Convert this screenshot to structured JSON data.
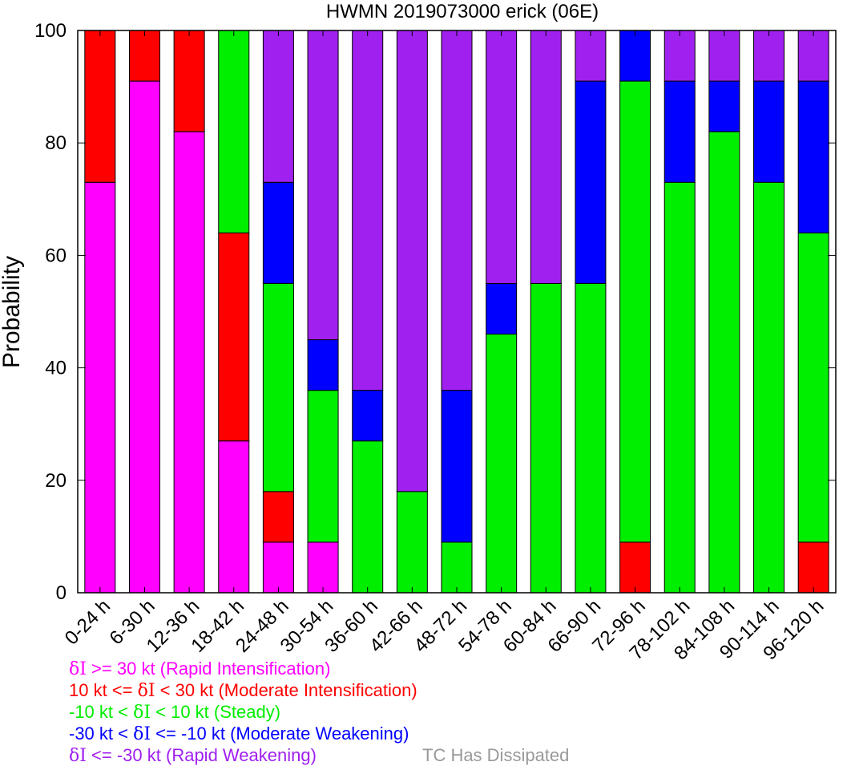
{
  "chart_data": {
    "type": "bar",
    "stacked": true,
    "title": "HWMN 2019073000 erick (06E)",
    "xlabel": "",
    "ylabel": "Probability",
    "ylim": [
      0,
      100
    ],
    "yticks": [
      0,
      20,
      40,
      60,
      80,
      100
    ],
    "categories": [
      "0-24 h",
      "6-30 h",
      "12-36 h",
      "18-42 h",
      "24-48 h",
      "30-54 h",
      "36-60 h",
      "42-66 h",
      "48-72 h",
      "54-78 h",
      "60-84 h",
      "66-90 h",
      "72-96 h",
      "78-102 h",
      "84-108 h",
      "90-114 h",
      "96-120 h"
    ],
    "series": [
      {
        "name": "Rapid Intensification",
        "color": "#ff00ff",
        "values": [
          73,
          91,
          82,
          27,
          9,
          9,
          0,
          0,
          0,
          0,
          0,
          0,
          0,
          0,
          0,
          0,
          0
        ]
      },
      {
        "name": "Moderate Intensification",
        "color": "#ff0000",
        "values": [
          27,
          9,
          18,
          37,
          9,
          0,
          0,
          0,
          0,
          0,
          0,
          0,
          9,
          0,
          0,
          0,
          9
        ]
      },
      {
        "name": "Steady",
        "color": "#00ee00",
        "values": [
          0,
          0,
          0,
          36,
          37,
          27,
          27,
          18,
          9,
          46,
          55,
          55,
          82,
          73,
          82,
          73,
          55
        ]
      },
      {
        "name": "Moderate Weakening",
        "color": "#0000ff",
        "values": [
          0,
          0,
          0,
          0,
          18,
          9,
          9,
          0,
          27,
          9,
          0,
          36,
          9,
          18,
          9,
          18,
          27
        ]
      },
      {
        "name": "Rapid Weakening",
        "color": "#a020f0",
        "values": [
          0,
          0,
          0,
          0,
          27,
          55,
          64,
          82,
          64,
          45,
          45,
          9,
          0,
          9,
          9,
          9,
          9
        ]
      }
    ],
    "grid": false,
    "legend_position": "bottom-left"
  },
  "legend": {
    "items": [
      {
        "symbol": "δI",
        "text": " >= 30 kt (Rapid Intensification)",
        "color": "#ff00ff"
      },
      {
        "pre": "10 kt <= ",
        "symbol": "δI",
        "text": " < 30 kt (Moderate Intensification)",
        "color": "#ff0000"
      },
      {
        "pre": "-10 kt < ",
        "symbol": "δI",
        "text": " < 10 kt (Steady)",
        "color": "#00ee00"
      },
      {
        "pre": "-30 kt < ",
        "symbol": "δI",
        "text": " <= -10 kt (Moderate Weakening)",
        "color": "#0000ff"
      },
      {
        "symbol": "δI",
        "text": " <= -30 kt (Rapid Weakening)",
        "color": "#a020f0"
      }
    ],
    "dissipated_label": "TC Has Dissipated",
    "dissipated_color": "#999999"
  }
}
